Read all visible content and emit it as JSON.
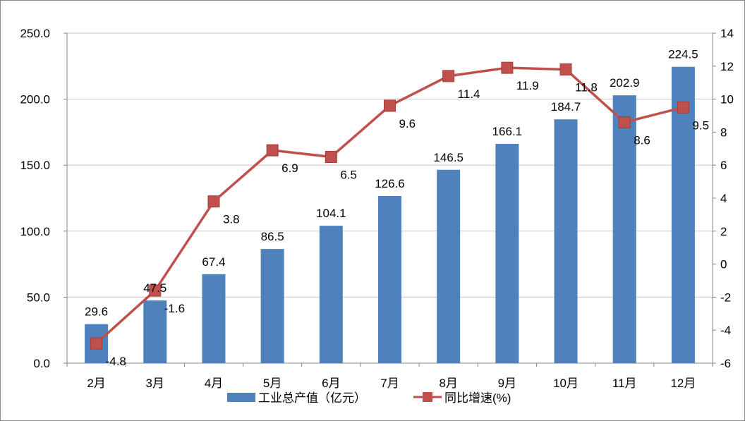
{
  "chart_data": {
    "type": "bar+line",
    "categories": [
      "2月",
      "3月",
      "4月",
      "5月",
      "6月",
      "7月",
      "8月",
      "9月",
      "10月",
      "11月",
      "12月"
    ],
    "series": [
      {
        "name": "工业总产值（亿元）",
        "type": "bar",
        "axis": "left",
        "color": "#4f81bd",
        "values": [
          29.6,
          47.5,
          67.4,
          86.5,
          104.1,
          126.6,
          146.5,
          166.1,
          184.7,
          202.9,
          224.5
        ],
        "labels": [
          "29.6",
          "47.5",
          "67.4",
          "86.5",
          "104.1",
          "126.6",
          "146.5",
          "166.1",
          "184.7",
          "202.9",
          "224.5"
        ]
      },
      {
        "name": "同比增速(%)",
        "type": "line",
        "axis": "right",
        "color": "#c0504d",
        "values": [
          -4.8,
          -1.6,
          3.8,
          6.9,
          6.5,
          9.6,
          11.4,
          11.9,
          11.8,
          8.6,
          9.5
        ],
        "labels": [
          "-4.8",
          "-1.6",
          "3.8",
          "6.9",
          "6.5",
          "9.6",
          "11.4",
          "11.9",
          "11.8",
          "8.6",
          "9.5"
        ]
      }
    ],
    "y_left": {
      "range": [
        0,
        250
      ],
      "ticks": [
        0,
        50,
        100,
        150,
        200,
        250
      ],
      "tick_labels": [
        "0.0",
        "50.0",
        "100.0",
        "150.0",
        "200.0",
        "250.0"
      ]
    },
    "y_right": {
      "range": [
        -6,
        14
      ],
      "ticks": [
        -6,
        -4,
        -2,
        0,
        2,
        4,
        6,
        8,
        10,
        12,
        14
      ],
      "tick_labels": [
        "-6",
        "-4",
        "-2",
        "0",
        "2",
        "4",
        "6",
        "8",
        "10",
        "12",
        "14"
      ]
    },
    "grid": true,
    "legend": "bottom"
  }
}
